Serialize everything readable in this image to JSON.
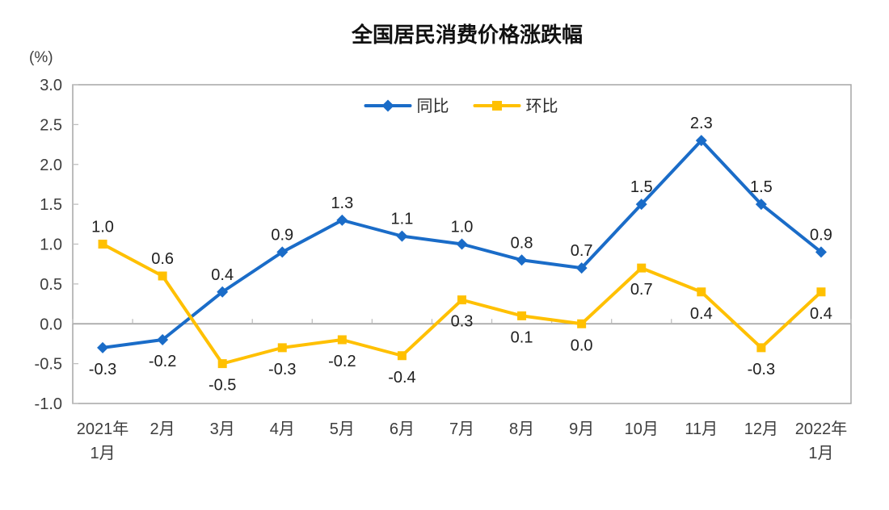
{
  "chart_data": {
    "type": "line",
    "title": "全国居民消费价格涨跌幅",
    "ylabel": "(%)",
    "xlabel": "",
    "categories": [
      "2021年\n1月",
      "2月",
      "3月",
      "4月",
      "5月",
      "6月",
      "7月",
      "8月",
      "9月",
      "10月",
      "11月",
      "12月",
      "2022年\n1月"
    ],
    "ylim": [
      -1.0,
      3.0
    ],
    "y_ticks": [
      3.0,
      2.5,
      2.0,
      1.5,
      1.0,
      0.5,
      0.0,
      -0.5,
      -1.0
    ],
    "grid": false,
    "legend_position": "top-center-inside",
    "axis_color": "#A6A6A6",
    "tick_color": "#BFBFBF",
    "series": [
      {
        "id": "yoy",
        "name": "同比",
        "color": "#1A6CC8",
        "marker": "diamond",
        "values": [
          -0.3,
          -0.2,
          0.4,
          0.9,
          1.3,
          1.1,
          1.0,
          0.8,
          0.7,
          1.5,
          2.3,
          1.5,
          0.9
        ],
        "label_pos": [
          "below",
          "below",
          "above",
          "above",
          "above",
          "above",
          "above",
          "above",
          "above",
          "above",
          "above",
          "above",
          "above"
        ]
      },
      {
        "id": "mom",
        "name": "环比",
        "color": "#FFC000",
        "marker": "square",
        "values": [
          1.0,
          0.6,
          -0.5,
          -0.3,
          -0.2,
          -0.4,
          0.3,
          0.1,
          0.0,
          0.7,
          0.4,
          -0.3,
          0.4
        ],
        "label_pos": [
          "above",
          "above",
          "below",
          "below",
          "below",
          "below",
          "below",
          "below",
          "below",
          "below",
          "below",
          "below",
          "below"
        ]
      }
    ]
  }
}
